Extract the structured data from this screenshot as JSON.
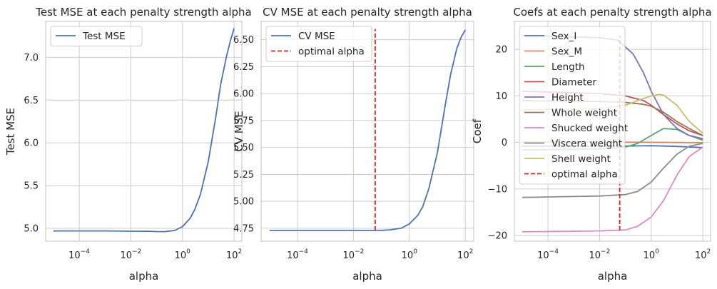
{
  "chart_data": [
    {
      "type": "line",
      "title": "Test MSE at each penalty strength alpha",
      "xlabel": "alpha",
      "ylabel": "Test MSE",
      "xscale": "log",
      "xlim": [
        5e-06,
        200
      ],
      "ylim": [
        4.85,
        7.42
      ],
      "xticks": [
        "10^-4",
        "10^-2",
        "10^0",
        "10^2"
      ],
      "yticks": [
        "5.0",
        "5.5",
        "6.0",
        "6.5",
        "7.0"
      ],
      "legend": "upper-left",
      "grid": true,
      "series": [
        {
          "name": "Test MSE",
          "color": "#4c72b0",
          "style": "solid",
          "x": [
            1e-05,
            0.0001,
            0.001,
            0.01,
            0.05,
            0.1,
            0.2,
            0.5,
            1,
            2,
            3,
            5,
            10,
            20,
            30,
            50,
            70,
            100
          ],
          "y": [
            4.97,
            4.97,
            4.97,
            4.967,
            4.966,
            4.963,
            4.962,
            4.975,
            5.02,
            5.12,
            5.22,
            5.4,
            5.78,
            6.32,
            6.68,
            7.0,
            7.18,
            7.34
          ]
        }
      ]
    },
    {
      "type": "line",
      "title": "CV MSE at each penalty strength alpha",
      "xlabel": "alpha",
      "ylabel": "CV MSE",
      "xscale": "log",
      "xlim": [
        5e-06,
        200
      ],
      "ylim": [
        4.63,
        6.67
      ],
      "xticks": [
        "10^-4",
        "10^-2",
        "10^0",
        "10^2"
      ],
      "yticks": [
        "4.75",
        "5.00",
        "5.25",
        "5.50",
        "5.75",
        "6.00",
        "6.25",
        "6.50"
      ],
      "legend": "upper-left",
      "grid": true,
      "series": [
        {
          "name": "CV MSE",
          "color": "#4c72b0",
          "style": "solid",
          "x": [
            1e-05,
            0.0001,
            0.001,
            0.01,
            0.05,
            0.1,
            0.2,
            0.5,
            1,
            2,
            3,
            5,
            10,
            20,
            30,
            50,
            70,
            100
          ],
          "y": [
            4.73,
            4.73,
            4.73,
            4.73,
            4.73,
            4.731,
            4.735,
            4.75,
            4.79,
            4.87,
            4.95,
            5.12,
            5.45,
            5.92,
            6.18,
            6.42,
            6.52,
            6.59
          ]
        },
        {
          "name": "optimal alpha",
          "color": "#e41a1c",
          "style": "dashed",
          "x": [
            0.06,
            0.06
          ],
          "y": [
            4.73,
            6.6
          ]
        }
      ]
    },
    {
      "type": "line",
      "title": "Coefs at each penalty strength alpha",
      "xlabel": "alpha",
      "ylabel": "Coef",
      "xscale": "log",
      "xlim": [
        5e-06,
        200
      ],
      "ylim": [
        -21.2,
        26
      ],
      "xticks": [
        "10^-4",
        "10^-2",
        "10^0",
        "10^2"
      ],
      "yticks": [
        "-20",
        "-10",
        "0",
        "10",
        "20"
      ],
      "legend": "upper-left",
      "grid": true,
      "series": [
        {
          "name": "Sex_I",
          "color": "#4c72b0",
          "style": "solid",
          "x": [
            1e-05,
            0.01,
            0.1,
            1,
            10,
            100
          ],
          "y": [
            -0.8,
            -0.8,
            -0.75,
            -0.7,
            -0.85,
            -1.1
          ]
        },
        {
          "name": "Sex_M",
          "color": "#dd8452",
          "style": "solid",
          "x": [
            1e-05,
            0.01,
            0.1,
            1,
            10,
            100
          ],
          "y": [
            0.05,
            0.05,
            0.05,
            0.04,
            0.0,
            -0.05
          ]
        },
        {
          "name": "Length",
          "color": "#55a868",
          "style": "solid",
          "x": [
            1e-05,
            0.01,
            0.1,
            0.3,
            1,
            3,
            10,
            30,
            100
          ],
          "y": [
            -1.6,
            -1.4,
            -1.0,
            -0.2,
            1.5,
            3.0,
            2.8,
            1.5,
            0.5
          ]
        },
        {
          "name": "Diameter",
          "color": "#c44e52",
          "style": "solid",
          "x": [
            1e-05,
            0.01,
            0.1,
            0.5,
            1,
            3,
            10,
            30,
            100
          ],
          "y": [
            11.0,
            10.5,
            10.0,
            9.0,
            8.0,
            6.0,
            4.0,
            2.5,
            1.5
          ]
        },
        {
          "name": "Height",
          "color": "#8172b3",
          "style": "solid",
          "x": [
            1e-05,
            0.01,
            0.05,
            0.2,
            0.5,
            1,
            3,
            10,
            30,
            100
          ],
          "y": [
            23.0,
            22.5,
            22.0,
            19.0,
            15.0,
            11.0,
            6.0,
            3.0,
            1.5,
            0.8
          ]
        },
        {
          "name": "Whole weight",
          "color": "#937860",
          "style": "solid",
          "x": [
            1e-05,
            0.01,
            0.1,
            0.5,
            1,
            3,
            10,
            30,
            100
          ],
          "y": [
            9.0,
            8.8,
            8.6,
            8.2,
            7.8,
            6.5,
            4.5,
            3.0,
            1.5
          ]
        },
        {
          "name": "Shucked weight",
          "color": "#da8bc3",
          "style": "solid",
          "x": [
            1e-05,
            0.01,
            0.1,
            0.3,
            1,
            3,
            10,
            30,
            100
          ],
          "y": [
            -19.2,
            -19.0,
            -18.8,
            -18.0,
            -16.0,
            -12.5,
            -7.0,
            -3.0,
            -1.0
          ]
        },
        {
          "name": "Viscera weight",
          "color": "#8c8c8c",
          "style": "solid",
          "x": [
            1e-05,
            0.01,
            0.1,
            0.3,
            1,
            3,
            10,
            30,
            100
          ],
          "y": [
            -11.8,
            -11.5,
            -11.2,
            -10.5,
            -8.5,
            -5.5,
            -2.5,
            -0.8,
            -0.2
          ]
        },
        {
          "name": "Shell weight",
          "color": "#ccb974",
          "style": "solid",
          "x": [
            1e-05,
            0.01,
            0.1,
            0.3,
            1,
            2,
            3,
            10,
            30,
            100
          ],
          "y": [
            7.0,
            7.3,
            8.0,
            9.0,
            10.0,
            10.3,
            10.2,
            8.0,
            4.5,
            2.0
          ]
        },
        {
          "name": "optimal alpha",
          "color": "#e41a1c",
          "style": "dashed",
          "x": [
            0.06,
            0.06
          ],
          "y": [
            -18.9,
            23.0
          ]
        }
      ]
    }
  ]
}
